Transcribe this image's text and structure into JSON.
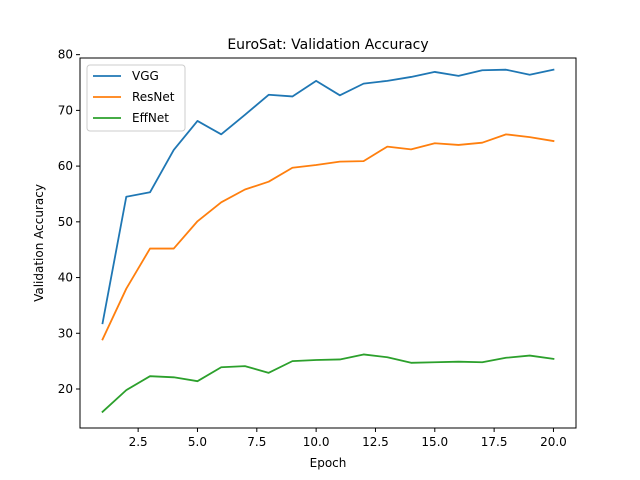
{
  "chart_data": {
    "type": "line",
    "title": "EuroSat: Validation Accuracy",
    "xlabel": "Epoch",
    "ylabel": "Validation Accuracy",
    "xlim": [
      0.05,
      20.95
    ],
    "ylim": [
      13.0,
      79.4
    ],
    "xticks": [
      "2.5",
      "5.0",
      "7.5",
      "10.0",
      "12.5",
      "15.0",
      "17.5",
      "20.0"
    ],
    "yticks": [
      "20",
      "30",
      "40",
      "50",
      "60",
      "70",
      "80"
    ],
    "legend_position": "upper-left",
    "x": [
      1,
      2,
      3,
      4,
      5,
      6,
      7,
      8,
      9,
      10,
      11,
      12,
      13,
      14,
      15,
      16,
      17,
      18,
      19,
      20
    ],
    "series": [
      {
        "name": "VGG",
        "color": "#1f77b4",
        "values": [
          31.8,
          54.5,
          55.3,
          62.9,
          68.1,
          65.7,
          69.2,
          72.8,
          72.5,
          75.3,
          72.7,
          74.8,
          75.3,
          76.0,
          76.9,
          76.2,
          77.2,
          77.3,
          76.4,
          77.3
        ]
      },
      {
        "name": "ResNet",
        "color": "#ff7f0e",
        "values": [
          28.9,
          38.0,
          45.2,
          45.2,
          50.1,
          53.5,
          55.8,
          57.2,
          59.7,
          60.2,
          60.8,
          60.9,
          63.5,
          63.0,
          64.1,
          63.8,
          64.2,
          65.7,
          65.2,
          64.5
        ]
      },
      {
        "name": "EffNet",
        "color": "#2ca02c",
        "values": [
          15.9,
          19.8,
          22.3,
          22.1,
          21.4,
          23.9,
          24.1,
          22.9,
          25.0,
          25.2,
          25.3,
          26.2,
          25.7,
          24.7,
          24.8,
          24.9,
          24.8,
          25.6,
          26.0,
          25.4
        ]
      }
    ]
  }
}
